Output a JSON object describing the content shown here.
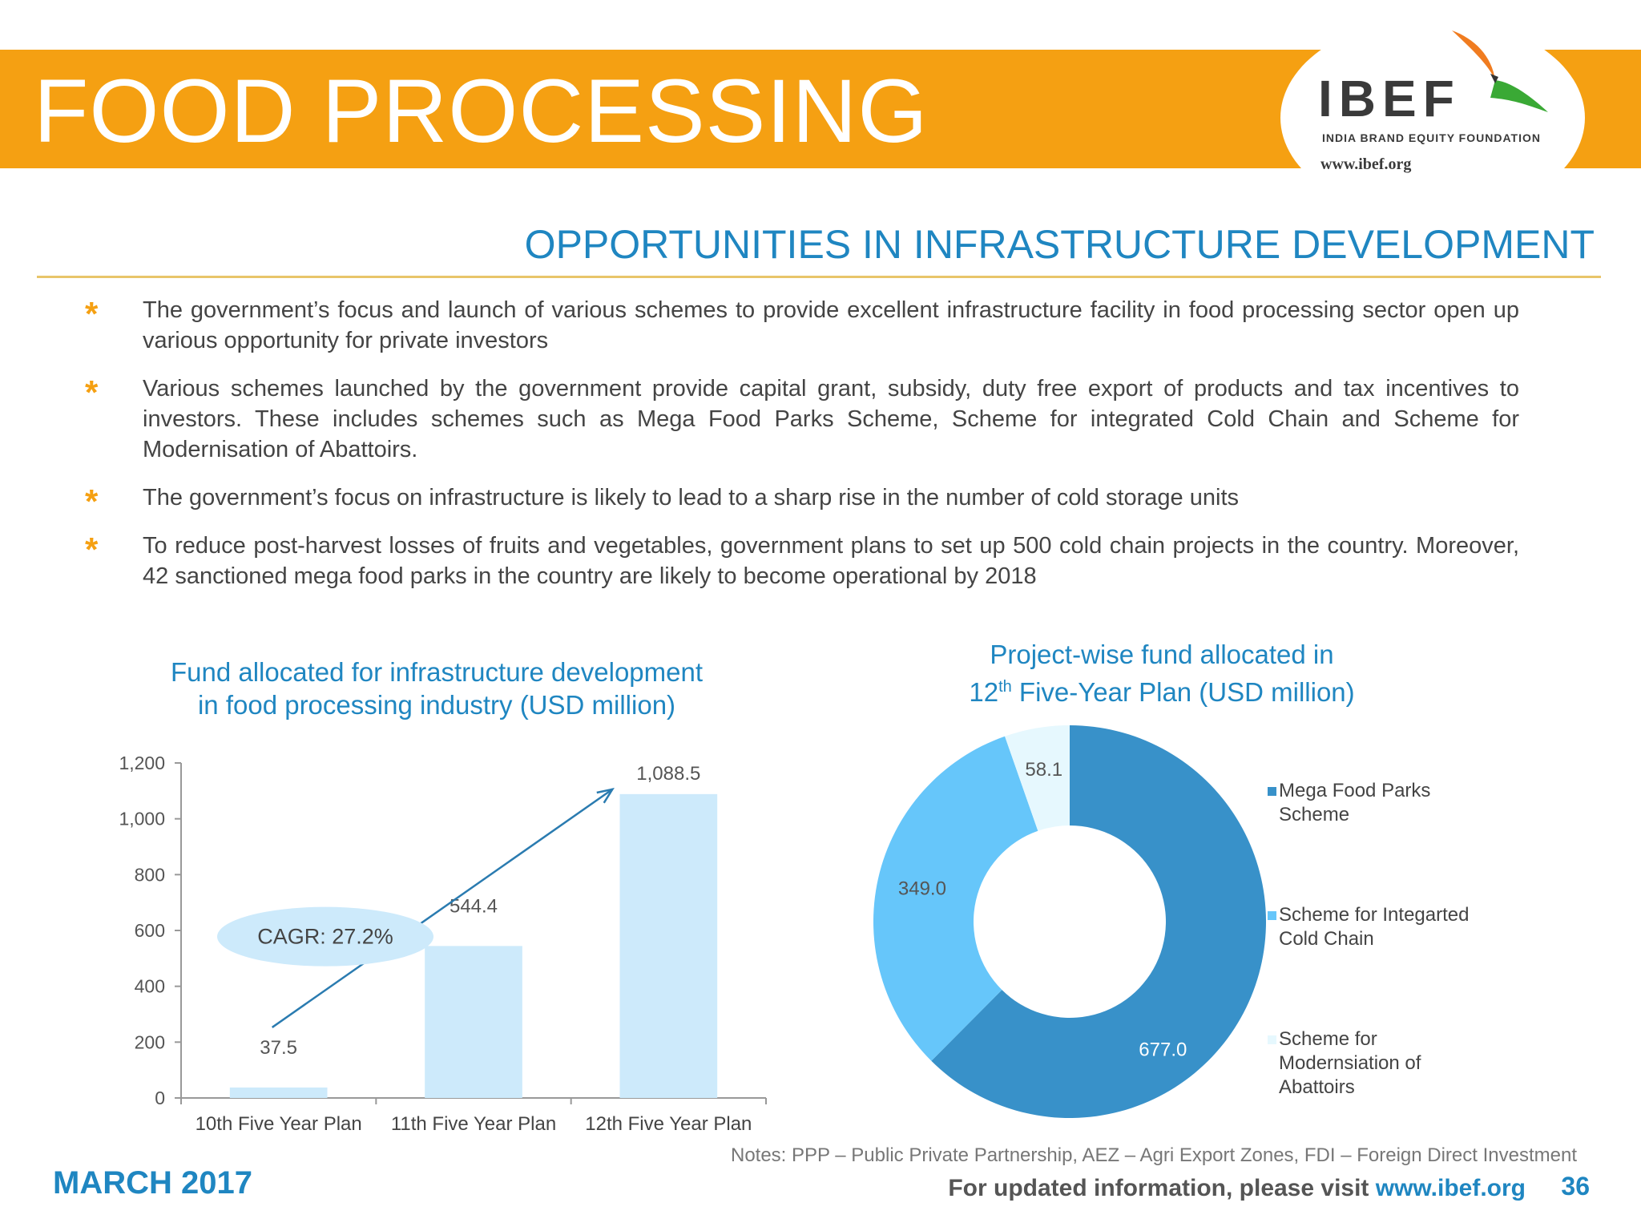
{
  "header": {
    "title": "FOOD PROCESSING",
    "logo_text": "IBEF",
    "logo_subtitle": "INDIA BRAND EQUITY FOUNDATION",
    "logo_url": "www.ibef.org"
  },
  "section_title": "OPPORTUNITIES IN INFRASTRUCTURE DEVELOPMENT",
  "bullets": [
    "The government’s focus and launch of various schemes to provide excellent infrastructure facility in food processing sector open up various opportunity for private investors",
    "Various schemes launched by the government provide capital grant, subsidy, duty free export of products and tax incentives to investors. These includes schemes such as Mega Food Parks Scheme, Scheme for integrated Cold Chain and Scheme for Modernisation of Abattoirs.",
    "The government’s focus on infrastructure is likely to lead to a sharp rise in the number of cold storage units",
    "To reduce post-harvest losses of fruits and vegetables, government plans to set up 500 cold chain projects in the country. Moreover, 42 sanctioned mega food parks in the country are likely to become operational by 2018"
  ],
  "bar_chart_title": {
    "line1": "Fund allocated for infrastructure development",
    "line2": "in food processing industry (USD million)"
  },
  "donut_chart_title": {
    "line1": "Project-wise fund allocated in",
    "line2_prefix": "12",
    "line2_sup": "th",
    "line2_rest": " Five-Year Plan (USD million)"
  },
  "chart_data": [
    {
      "type": "bar",
      "title": "Fund allocated for infrastructure development in food processing industry (USD million)",
      "categories": [
        "10th Five Year Plan",
        "11th Five Year Plan",
        "12th Five Year Plan"
      ],
      "values": [
        37.5,
        544.4,
        1088.5
      ],
      "value_labels": [
        "37.5",
        "544.4",
        "1,088.5"
      ],
      "ylim": [
        0,
        1200
      ],
      "yticks": [
        "0",
        "200",
        "400",
        "600",
        "800",
        "1,000",
        "1,200"
      ],
      "bar_color": "#cdeafb",
      "annotation": "CAGR: 27.2%",
      "grid": false
    },
    {
      "type": "pie",
      "variant": "donut",
      "title": "Project-wise fund allocated in 12th Five-Year Plan (USD million)",
      "series": [
        {
          "name": "Mega Food Parks Scheme",
          "value": 677.0,
          "label": "677.0",
          "color": "#3891c9"
        },
        {
          "name": "Scheme for Integarted Cold Chain",
          "value": 349.0,
          "label": "349.0",
          "color": "#66c6fa"
        },
        {
          "name": "Scheme for Modernsiation of Abattoirs",
          "value": 58.1,
          "label": "58.1",
          "color": "#e6f8fe"
        }
      ],
      "legend_lines": [
        [
          "Mega Food Parks",
          "Scheme"
        ],
        [
          "Scheme for Integarted",
          "Cold Chain"
        ],
        [
          "Scheme for",
          "Modernsiation of",
          "Abattoirs"
        ]
      ],
      "legend_position": "right"
    }
  ],
  "footer": {
    "date": "MARCH 2017",
    "notes": "Notes: PPP – Public Private Partnership, AEZ – Agri Export Zones, FDI – Foreign Direct Investment",
    "visit_text": "For updated information, please visit ",
    "visit_link": "www.ibef.org",
    "page_number": "36"
  }
}
